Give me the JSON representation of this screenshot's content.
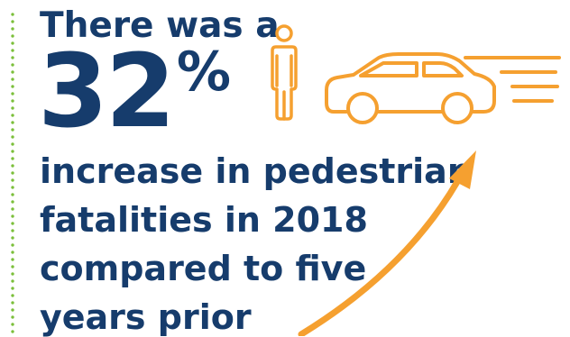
{
  "headline": "There was a",
  "stat": {
    "value": "32",
    "unit": "%"
  },
  "body_lines": [
    "increase in pedestrian",
    "fatalities in 2018",
    "compared to five",
    "years prior"
  ],
  "icons": [
    "dotted-divider",
    "pedestrian-icon",
    "car-icon",
    "speed-lines-icon",
    "upward-arrow-icon"
  ],
  "colors": {
    "navy": "#163c6c",
    "orange": "#f5a030",
    "green_dots": "#7bbf3a"
  }
}
